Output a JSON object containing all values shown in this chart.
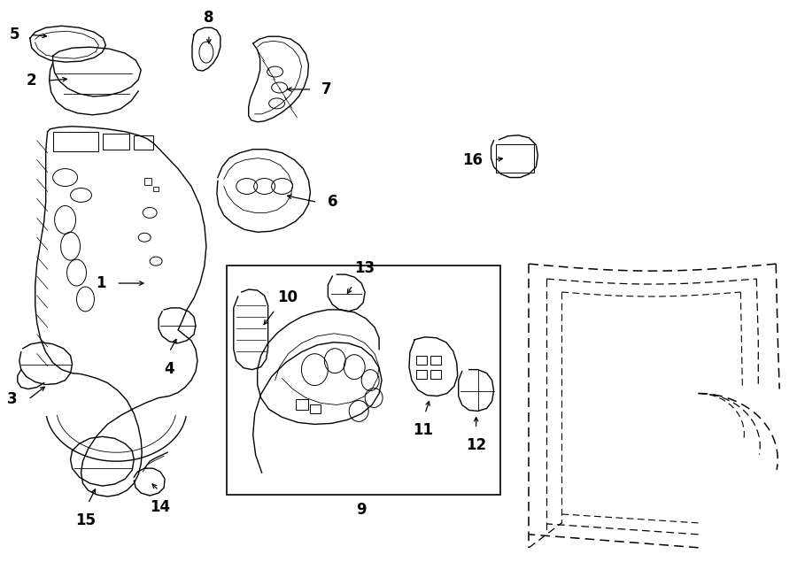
{
  "bg_color": "#ffffff",
  "line_color": "#000000",
  "lw": 1.0,
  "lw_thin": 0.6,
  "lw_thick": 1.3,
  "label_fontsize": 12
}
